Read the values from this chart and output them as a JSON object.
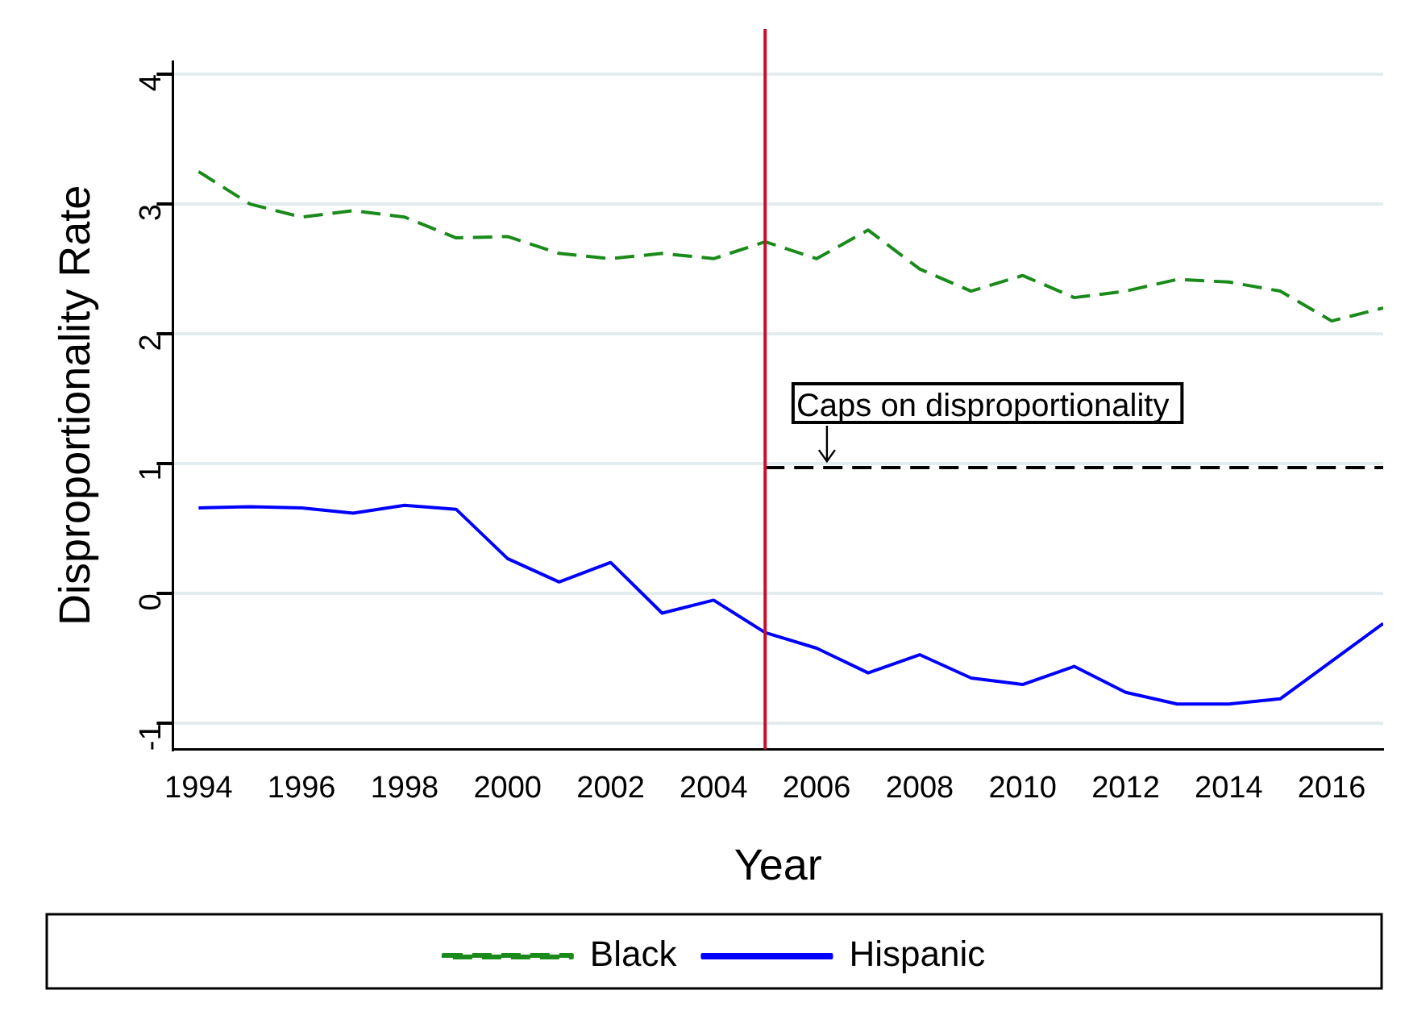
{
  "chart_data": {
    "type": "line",
    "xlabel": "Year",
    "ylabel": "Disproportionality Rate",
    "x": [
      1994,
      1995,
      1996,
      1997,
      1998,
      1999,
      2000,
      2001,
      2002,
      2003,
      2004,
      2005,
      2006,
      2007,
      2008,
      2009,
      2010,
      2011,
      2012,
      2013,
      2014,
      2015,
      2016,
      2017
    ],
    "series": [
      {
        "name": "Black",
        "color": "#1a8a1a",
        "line_style": "dashed",
        "values": [
          3.25,
          3.0,
          2.9,
          2.95,
          2.9,
          2.74,
          2.75,
          2.62,
          2.58,
          2.62,
          2.58,
          2.71,
          2.58,
          2.8,
          2.5,
          2.33,
          2.45,
          2.28,
          2.33,
          2.42,
          2.4,
          2.33,
          2.1,
          2.2
        ]
      },
      {
        "name": "Hispanic",
        "color": "#0000ff",
        "line_style": "solid",
        "values": [
          0.66,
          0.67,
          0.66,
          0.62,
          0.68,
          0.65,
          0.27,
          0.09,
          0.24,
          -0.15,
          -0.05,
          -0.3,
          -0.42,
          -0.61,
          -0.47,
          -0.65,
          -0.7,
          -0.56,
          -0.76,
          -0.85,
          -0.85,
          -0.81,
          -0.52,
          -0.23
        ]
      },
      {
        "type": "line",
        "color": "#000000",
        "line_style": "dashed",
        "x": [
          2005,
          2017
        ],
        "values": [
          0.97,
          0.97
        ]
      }
    ],
    "ref_lines": [
      {
        "axis": "x",
        "value": 2005,
        "color": "#c8102e"
      }
    ],
    "annotations": [
      {
        "text": "Caps on disproportionality",
        "x": 2006.2,
        "y": 0.97
      }
    ],
    "xlim": [
      1993.5,
      2017
    ],
    "xticks": [
      1994,
      1996,
      1998,
      2000,
      2002,
      2004,
      2006,
      2008,
      2010,
      2012,
      2014,
      2016
    ],
    "ylim": [
      -1.2,
      4.1
    ],
    "yticks": [
      -1,
      0,
      1,
      2,
      3,
      4
    ],
    "grid": "y",
    "legend": "bottom",
    "marker": "none"
  }
}
